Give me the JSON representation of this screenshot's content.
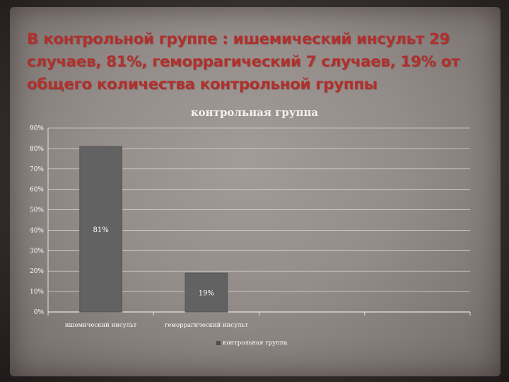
{
  "slide": {
    "title": "В контрольной группе : ишемический инсульт 29 случаев, 81%, геморрагический 7 случаев, 19% от общего количества контрольной группы"
  },
  "colors": {
    "bar": "#626262",
    "bar_border": "#555555",
    "title": "#b0302c"
  },
  "chart_data": {
    "type": "bar",
    "title": "контрольная группа",
    "categories": [
      "ишемический инсульт",
      "геморрагический инсульт",
      "",
      ""
    ],
    "series": [
      {
        "name": "контрольная группа",
        "values": [
          0.81,
          0.19,
          null,
          null
        ]
      }
    ],
    "data_labels": [
      "81%",
      "19%"
    ],
    "y_ticks": [
      "0%",
      "10%",
      "20%",
      "30%",
      "40%",
      "50%",
      "60%",
      "70%",
      "80%",
      "90%"
    ],
    "ylim": [
      0,
      0.9
    ],
    "grid": true,
    "legend": "bottom"
  }
}
